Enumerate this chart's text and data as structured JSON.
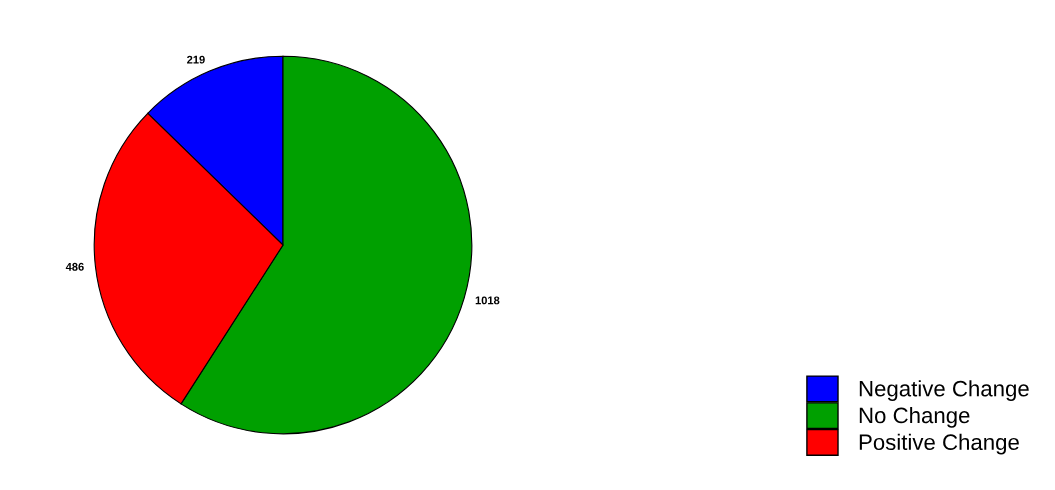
{
  "chart_data": {
    "type": "pie",
    "categories": [
      "Negative Change",
      "No Change",
      "Positive Change"
    ],
    "values": [
      219,
      1018,
      486
    ],
    "colors": [
      "#0000ff",
      "#00a000",
      "#ff0000"
    ],
    "data_labels": true,
    "legend": "bottom right"
  }
}
